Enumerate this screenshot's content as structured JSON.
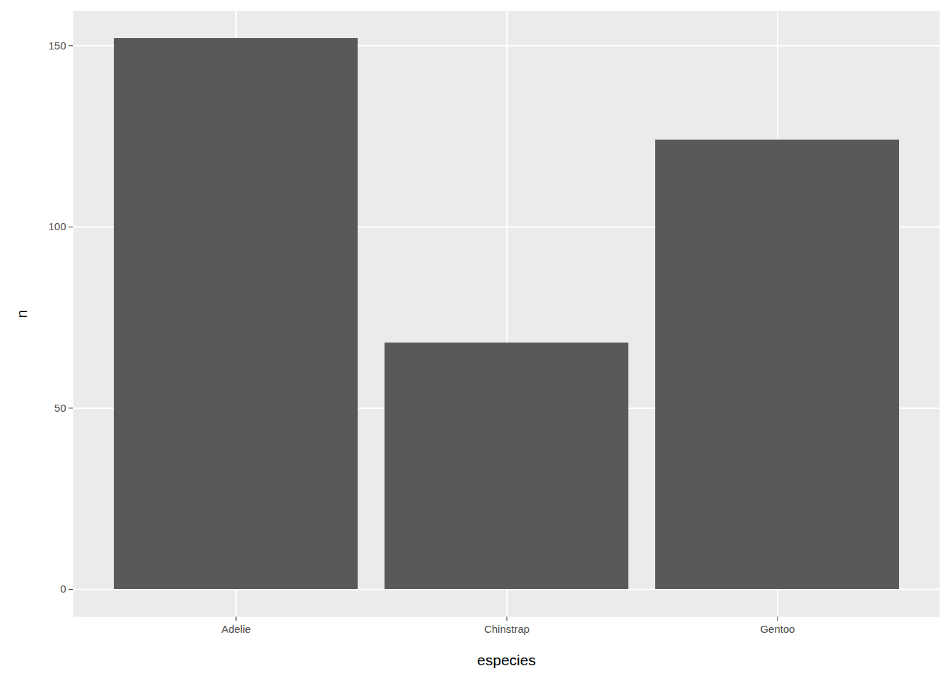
{
  "chart_data": {
    "type": "bar",
    "x_label": "especies",
    "y_label": "n",
    "categories": [
      "Adelie",
      "Chinstrap",
      "Gentoo"
    ],
    "values": [
      152,
      68,
      124
    ],
    "color": "#595959",
    "ylim": [
      -7.6,
      159.6
    ],
    "yticks": [
      0,
      50,
      100,
      150
    ],
    "grid": true
  }
}
